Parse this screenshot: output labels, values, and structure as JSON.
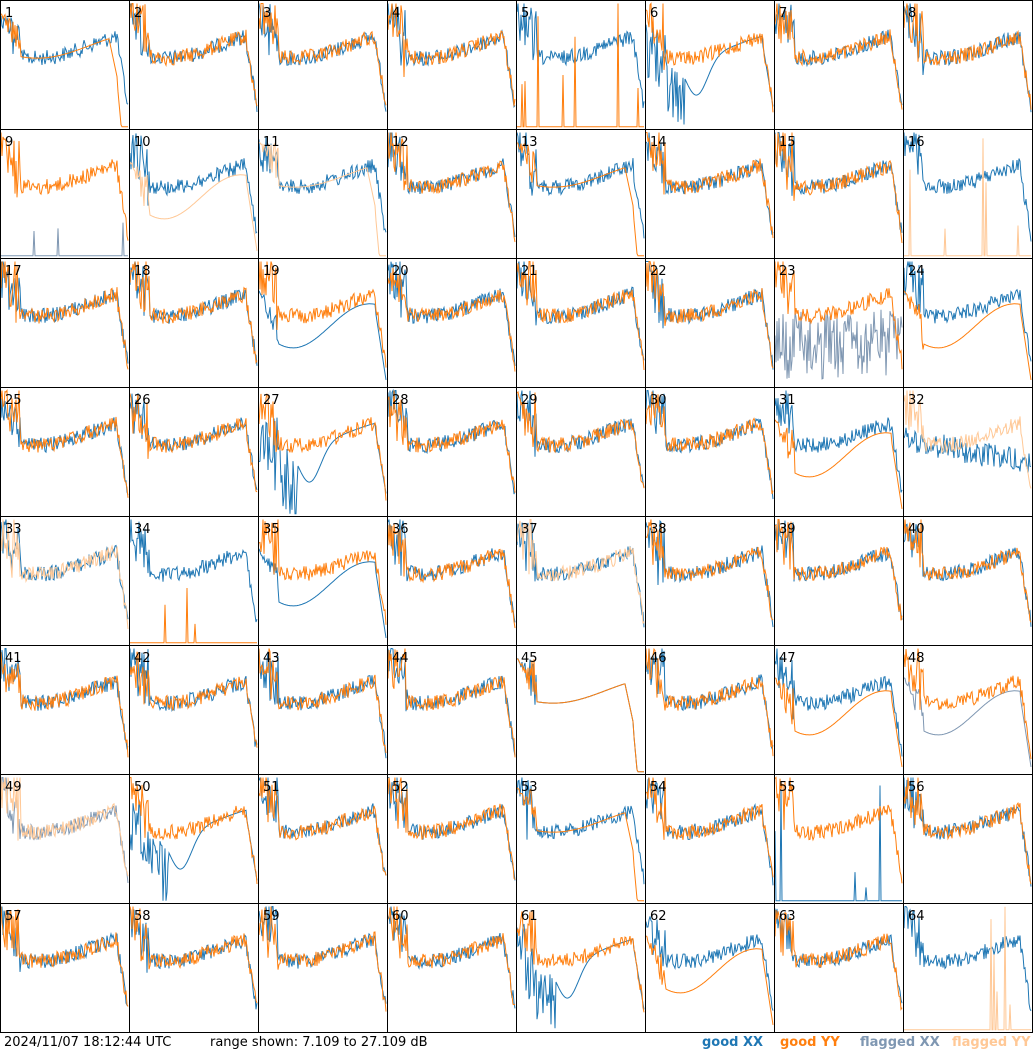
{
  "chart_data": {
    "type": "line",
    "layout_grid": "8x8",
    "panel_labels": [
      "1",
      "2",
      "3",
      "4",
      "5",
      "6",
      "7",
      "8",
      "9",
      "10",
      "11",
      "12",
      "13",
      "14",
      "15",
      "16",
      "17",
      "18",
      "19",
      "20",
      "21",
      "22",
      "23",
      "24",
      "25",
      "26",
      "27",
      "28",
      "29",
      "30",
      "31",
      "32",
      "33",
      "34",
      "35",
      "36",
      "37",
      "38",
      "39",
      "40",
      "41",
      "42",
      "43",
      "44",
      "45",
      "46",
      "47",
      "48",
      "49",
      "50",
      "51",
      "52",
      "53",
      "54",
      "55",
      "56",
      "57",
      "58",
      "59",
      "60",
      "61",
      "62",
      "63",
      "64"
    ],
    "ylim": [
      7.109,
      27.109
    ],
    "y_unit": "dB",
    "series_colors": {
      "good_XX": "#1f77b4",
      "good_YY": "#ff7f0e",
      "flagged_XX": "#7f97b2",
      "flagged_YY": "#ffc896"
    },
    "panel_profiles": {
      "1": [
        "normal",
        "rolloff"
      ],
      "5": [
        "normal",
        "spike"
      ],
      "6": [
        "dip",
        "normal"
      ],
      "8": [
        "normal",
        "normal"
      ],
      "9": [
        "spike",
        "normal"
      ],
      "10": [
        "normal",
        "low"
      ],
      "11": [
        "normal",
        "rolloff"
      ],
      "13": [
        "normal",
        "rolloff"
      ],
      "16": [
        "normal",
        "spike"
      ],
      "19": [
        "low",
        "normal"
      ],
      "23": [
        "noisy",
        "normal"
      ],
      "24": [
        "normal",
        "low"
      ],
      "27": [
        "dip",
        "normal"
      ],
      "31": [
        "normal",
        "low"
      ],
      "32": [
        "flat",
        "normal"
      ],
      "34": [
        "normal",
        "spike"
      ],
      "35": [
        "low",
        "normal"
      ],
      "39": [
        "normal",
        "normal"
      ],
      "45": [
        "rolloff",
        "rolloff"
      ],
      "47": [
        "normal",
        "low"
      ],
      "48": [
        "low",
        "normal"
      ],
      "50": [
        "dip",
        "normal"
      ],
      "53": [
        "normal",
        "rolloff"
      ],
      "55": [
        "spike",
        "normal"
      ],
      "61": [
        "dip",
        "normal"
      ],
      "62": [
        "normal",
        "low"
      ],
      "64": [
        "normal",
        "spike"
      ]
    },
    "flagged_xx_panels": [
      "9",
      "23",
      "48",
      "49"
    ],
    "flagged_yy_panels": [
      "10",
      "11",
      "16",
      "32",
      "33",
      "37",
      "49",
      "64"
    ]
  },
  "footer": {
    "timestamp": "2024/11/07 18:12:44 UTC",
    "range_text": "range shown: 7.109 to 27.109 dB"
  },
  "legend": {
    "items": [
      {
        "label": "good XX",
        "color": "#1f77b4"
      },
      {
        "label": "good YY",
        "color": "#ff7f0e"
      },
      {
        "label": "flagged XX",
        "color": "#7f97b2"
      },
      {
        "label": "flagged YY",
        "color": "#ffc896"
      }
    ]
  }
}
